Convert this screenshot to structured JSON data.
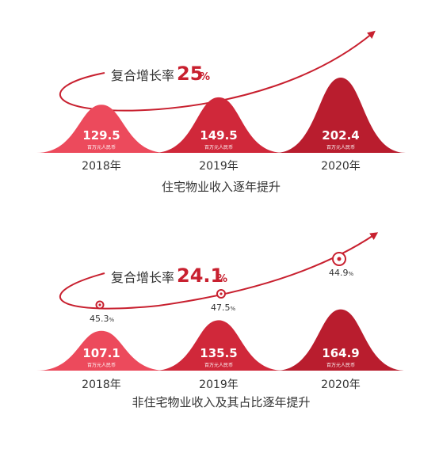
{
  "colors": {
    "arrow": "#c8202f",
    "bell_light": "#ec4a5c",
    "bell_mid": "#d0283a",
    "bell_dark": "#b91d2e",
    "text": "#333333",
    "growth_accent": "#c8202f"
  },
  "chart_data": [
    {
      "type": "bar",
      "categories": [
        "2018年",
        "2019年",
        "2020年"
      ],
      "values": [
        129.5,
        149.5,
        202.4
      ],
      "value_labels": [
        "129.5",
        "149.5",
        "202.4"
      ],
      "unit": "百万元人民币",
      "title": "住宅物业收入逐年提升",
      "growth_label": "复合增长率",
      "growth_value": "25",
      "growth_unit": "%"
    },
    {
      "type": "bar",
      "categories": [
        "2018年",
        "2019年",
        "2020年"
      ],
      "values": [
        107.1,
        135.5,
        164.9
      ],
      "value_labels": [
        "107.1",
        "135.5",
        "164.9"
      ],
      "unit": "百万元人民币",
      "title": "非住宅物业收入及其占比逐年提升",
      "growth_label": "复合增长率",
      "growth_value": "24.1",
      "growth_unit": "%",
      "share_values": [
        45.3,
        47.5,
        44.9
      ],
      "share_labels": [
        "45.3%",
        "47.5%",
        "44.9%"
      ]
    }
  ]
}
